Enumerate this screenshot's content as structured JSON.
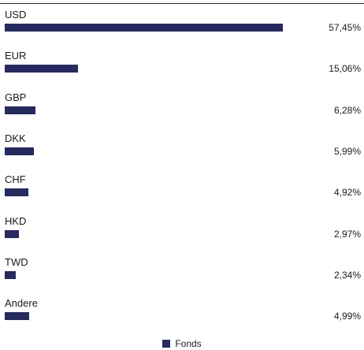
{
  "chart_data": {
    "type": "bar",
    "orientation": "horizontal",
    "categories": [
      "USD",
      "EUR",
      "GBP",
      "DKK",
      "CHF",
      "HKD",
      "TWD",
      "Andere"
    ],
    "series": [
      {
        "name": "Fonds",
        "values": [
          57.45,
          15.06,
          6.28,
          5.99,
          4.92,
          2.97,
          2.34,
          4.99
        ],
        "labels": [
          "57,45%",
          "15,06%",
          "6,28%",
          "5,99%",
          "4,92%",
          "2,97%",
          "2,34%",
          "4,99%"
        ],
        "color": "#262a5e"
      }
    ],
    "title": "",
    "xlabel": "",
    "ylabel": "",
    "xlim": [
      0,
      57.45
    ],
    "grid": false,
    "legend_position": "bottom-center"
  }
}
